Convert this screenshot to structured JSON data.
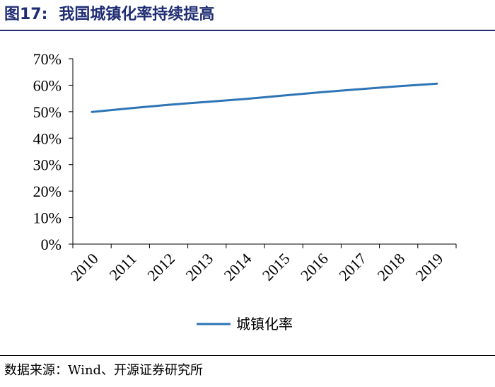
{
  "header": {
    "figure_label": "图17:",
    "title": "我国城镇化率持续提高"
  },
  "footer": {
    "source": "数据来源：Wind、开源证券研究所"
  },
  "chart_data": {
    "type": "line",
    "categories": [
      "2010",
      "2011",
      "2012",
      "2013",
      "2014",
      "2015",
      "2016",
      "2017",
      "2018",
      "2019"
    ],
    "series": [
      {
        "name": "城镇化率",
        "color": "#2e75b6",
        "values": [
          49.9,
          51.3,
          52.6,
          53.7,
          54.8,
          56.1,
          57.4,
          58.5,
          59.6,
          60.6
        ]
      }
    ],
    "y_ticks": [
      "0%",
      "10%",
      "20%",
      "30%",
      "40%",
      "50%",
      "60%",
      "70%"
    ],
    "ylim": [
      0,
      70
    ],
    "y_unit": "%",
    "grid": false,
    "legend_position": "bottom"
  }
}
